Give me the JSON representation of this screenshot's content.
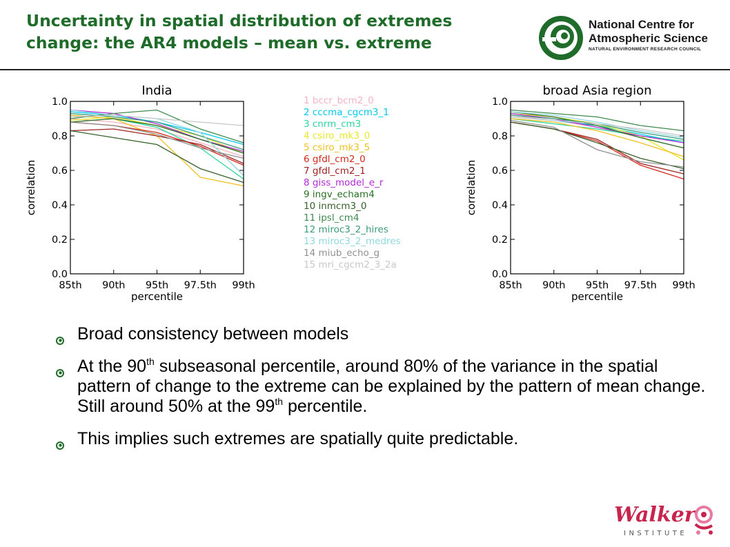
{
  "header": {
    "title_line1": "Uncertainty in spatial distribution of extremes",
    "title_line2": "change: the AR4 models – mean vs. extreme",
    "logo": {
      "line1": "National Centre for",
      "line2": "Atmospheric Science",
      "line3": "NATURAL ENVIRONMENT RESEARCH COUNCIL"
    }
  },
  "colors": {
    "title": "#1f6b2a",
    "walker_red": "#c7254e",
    "walker_pink": "#e67aa0",
    "bullet_icon": "#1f6b2a"
  },
  "chart_data": [
    {
      "type": "line",
      "title": "India",
      "xlabel": "percentile",
      "ylabel": "correlation",
      "x": [
        "85th",
        "90th",
        "95th",
        "97.5th",
        "99th"
      ],
      "ylim": [
        0.0,
        1.0
      ],
      "yticks": [
        "0.0",
        "0.2",
        "0.4",
        "0.6",
        "0.8",
        "1.0"
      ],
      "series": [
        {
          "name": "1 bccr_bcm2_0",
          "color": "#f4b3c2",
          "values": [
            0.9,
            0.88,
            0.84,
            0.76,
            0.68
          ]
        },
        {
          "name": "2 cccma_cgcm3_1",
          "color": "#00c8ee",
          "values": [
            0.94,
            0.92,
            0.88,
            0.82,
            0.75
          ]
        },
        {
          "name": "3 cnrm_cm3",
          "color": "#2dd4a0",
          "values": [
            0.92,
            0.9,
            0.85,
            0.73,
            0.55
          ]
        },
        {
          "name": "4 csiro_mk3_0",
          "color": "#e8e82a",
          "values": [
            0.89,
            0.91,
            0.86,
            0.8,
            0.7
          ]
        },
        {
          "name": "5 csiro_mk3_5",
          "color": "#f0c020",
          "values": [
            0.92,
            0.9,
            0.8,
            0.56,
            0.51
          ]
        },
        {
          "name": "6 gfdl_cm2_0",
          "color": "#d12a1e",
          "values": [
            0.88,
            0.86,
            0.82,
            0.74,
            0.63
          ]
        },
        {
          "name": "7 gfdl_cm2_1",
          "color": "#a02020",
          "values": [
            0.83,
            0.84,
            0.8,
            0.75,
            0.64
          ]
        },
        {
          "name": "8 giss_model_e_r",
          "color": "#b02ad8",
          "values": [
            0.95,
            0.93,
            0.87,
            0.78,
            0.71
          ]
        },
        {
          "name": "9 ingv_echam4",
          "color": "#2a6e22",
          "values": [
            0.88,
            0.9,
            0.86,
            0.78,
            0.7
          ]
        },
        {
          "name": "10 inmcm3_0",
          "color": "#36602a",
          "values": [
            0.83,
            0.79,
            0.75,
            0.61,
            0.53
          ]
        },
        {
          "name": "11 ipsl_cm4",
          "color": "#3f8a50",
          "values": [
            0.9,
            0.93,
            0.95,
            0.84,
            0.76
          ]
        },
        {
          "name": "12 miroc3_2_hires",
          "color": "#3a9a7a",
          "values": [
            0.93,
            0.91,
            0.88,
            0.8,
            0.72
          ]
        },
        {
          "name": "13 miroc3_2_medres",
          "color": "#8fd8e0",
          "values": [
            0.95,
            0.92,
            0.9,
            0.82,
            0.57
          ]
        },
        {
          "name": "14 miub_echo_g",
          "color": "#909090",
          "values": [
            0.88,
            0.86,
            0.81,
            0.73,
            0.67
          ]
        },
        {
          "name": "15 mri_cgcm2_3_2a",
          "color": "#c8c8c8",
          "values": [
            0.91,
            0.92,
            0.9,
            0.88,
            0.86
          ]
        }
      ]
    },
    {
      "type": "line",
      "title": "broad Asia region",
      "xlabel": "percentile",
      "ylabel": "correlation",
      "x": [
        "85th",
        "90th",
        "95th",
        "97.5th",
        "99th"
      ],
      "ylim": [
        0.0,
        1.0
      ],
      "yticks": [
        "0.0",
        "0.2",
        "0.4",
        "0.6",
        "0.8",
        "1.0"
      ],
      "series": [
        {
          "name": "1 bccr_bcm2_0",
          "color": "#f4b3c2",
          "values": [
            0.92,
            0.89,
            0.85,
            0.79,
            0.73
          ]
        },
        {
          "name": "2 cccma_cgcm3_1",
          "color": "#00c8ee",
          "values": [
            0.91,
            0.89,
            0.86,
            0.81,
            0.76
          ]
        },
        {
          "name": "3 cnrm_cm3",
          "color": "#2dd4a0",
          "values": [
            0.9,
            0.87,
            0.84,
            0.8,
            0.77
          ]
        },
        {
          "name": "4 csiro_mk3_0",
          "color": "#e8e82a",
          "values": [
            0.93,
            0.91,
            0.87,
            0.8,
            0.66
          ]
        },
        {
          "name": "5 csiro_mk3_5",
          "color": "#f0c020",
          "values": [
            0.9,
            0.88,
            0.83,
            0.76,
            0.68
          ]
        },
        {
          "name": "6 gfdl_cm2_0",
          "color": "#d12a1e",
          "values": [
            0.88,
            0.84,
            0.77,
            0.63,
            0.55
          ]
        },
        {
          "name": "7 gfdl_cm2_1",
          "color": "#a02020",
          "values": [
            0.88,
            0.84,
            0.78,
            0.64,
            0.58
          ]
        },
        {
          "name": "8 giss_model_e_r",
          "color": "#b02ad8",
          "values": [
            0.93,
            0.9,
            0.85,
            0.8,
            0.76
          ]
        },
        {
          "name": "9 ingv_echam4",
          "color": "#2a6e22",
          "values": [
            0.94,
            0.91,
            0.86,
            0.79,
            0.73
          ]
        },
        {
          "name": "10 inmcm3_0",
          "color": "#36602a",
          "values": [
            0.88,
            0.84,
            0.76,
            0.67,
            0.61
          ]
        },
        {
          "name": "11 ipsl_cm4",
          "color": "#3f8a50",
          "values": [
            0.95,
            0.93,
            0.91,
            0.86,
            0.83
          ]
        },
        {
          "name": "12 miroc3_2_hires",
          "color": "#3a9a7a",
          "values": [
            0.92,
            0.9,
            0.87,
            0.82,
            0.78
          ]
        },
        {
          "name": "13 miroc3_2_medres",
          "color": "#8fd8e0",
          "values": [
            0.94,
            0.92,
            0.88,
            0.83,
            0.79
          ]
        },
        {
          "name": "14 miub_echo_g",
          "color": "#909090",
          "values": [
            0.89,
            0.85,
            0.72,
            0.65,
            0.62
          ]
        },
        {
          "name": "15 mri_cgcm2_3_2a",
          "color": "#c8c8c8",
          "values": [
            0.91,
            0.89,
            0.87,
            0.84,
            0.8
          ]
        }
      ]
    }
  ],
  "bullets": [
    {
      "parts": [
        "Broad consistency between models"
      ]
    },
    {
      "parts": [
        "At the 90",
        "th",
        " subseasonal percentile, around 80% of the variance in the spatial pattern of change to the extreme can be explained by the pattern of mean change.  Still around 50% at the 99",
        "th",
        " percentile."
      ]
    },
    {
      "parts": [
        "This implies such extremes are spatially quite predictable."
      ]
    }
  ],
  "footer": {
    "walker_name": "Walker",
    "walker_sub": "INSTITUTE"
  }
}
